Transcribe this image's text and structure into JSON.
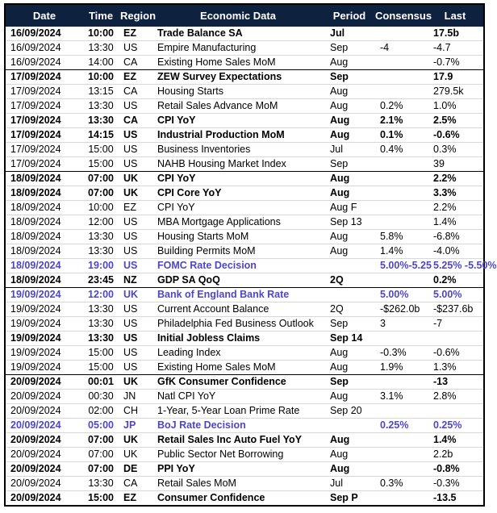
{
  "colors": {
    "header_bg": "#0e2240",
    "header_text": "#ffffff",
    "text": "#000000",
    "highlight": "#4e46c8",
    "row_line": "#d8d8d8",
    "frame": "#000000"
  },
  "chart_data": {
    "type": "table",
    "columns": [
      "Date",
      "Time",
      "Region",
      "Economic Data",
      "Period",
      "Consensus",
      "Last"
    ],
    "rows": [
      {
        "date": "16/09/2024",
        "time": "10:00",
        "region": "EZ",
        "event": "Trade Balance SA",
        "period": "Jul",
        "consensus": "",
        "last": "17.5b",
        "style": "bold",
        "day_start": false
      },
      {
        "date": "16/09/2024",
        "time": "13:30",
        "region": "US",
        "event": "Empire Manufacturing",
        "period": "Sep",
        "consensus": "-4",
        "last": "-4.7",
        "style": "normal",
        "day_start": false
      },
      {
        "date": "16/09/2024",
        "time": "14:00",
        "region": "CA",
        "event": "Existing Home Sales MoM",
        "period": "Aug",
        "consensus": "",
        "last": "-0.7%",
        "style": "normal",
        "day_start": false
      },
      {
        "date": "17/09/2024",
        "time": "10:00",
        "region": "EZ",
        "event": "ZEW Survey Expectations",
        "period": "Sep",
        "consensus": "",
        "last": "17.9",
        "style": "bold",
        "day_start": true
      },
      {
        "date": "17/09/2024",
        "time": "13:15",
        "region": "CA",
        "event": "Housing Starts",
        "period": "Aug",
        "consensus": "",
        "last": "279.5k",
        "style": "normal",
        "day_start": false
      },
      {
        "date": "17/09/2024",
        "time": "13:30",
        "region": "US",
        "event": "Retail Sales Advance MoM",
        "period": "Aug",
        "consensus": "0.2%",
        "last": "1.0%",
        "style": "normal",
        "day_start": false
      },
      {
        "date": "17/09/2024",
        "time": "13:30",
        "region": "CA",
        "event": "CPI YoY",
        "period": "Aug",
        "consensus": "2.1%",
        "last": "2.5%",
        "style": "bold",
        "day_start": false
      },
      {
        "date": "17/09/2024",
        "time": "14:15",
        "region": "US",
        "event": "Industrial Production MoM",
        "period": "Aug",
        "consensus": "0.1%",
        "last": "-0.6%",
        "style": "bold",
        "day_start": false
      },
      {
        "date": "17/09/2024",
        "time": "15:00",
        "region": "US",
        "event": "Business Inventories",
        "period": "Jul",
        "consensus": "0.4%",
        "last": "0.3%",
        "style": "normal",
        "day_start": false
      },
      {
        "date": "17/09/2024",
        "time": "15:00",
        "region": "US",
        "event": "NAHB Housing Market Index",
        "period": "Sep",
        "consensus": "",
        "last": "39",
        "style": "normal",
        "day_start": false
      },
      {
        "date": "18/09/2024",
        "time": "07:00",
        "region": "UK",
        "event": "CPI YoY",
        "period": "Aug",
        "consensus": "",
        "last": "2.2%",
        "style": "bold",
        "day_start": true
      },
      {
        "date": "18/09/2024",
        "time": "07:00",
        "region": "UK",
        "event": "CPI Core YoY",
        "period": "Aug",
        "consensus": "",
        "last": "3.3%",
        "style": "bold",
        "day_start": false
      },
      {
        "date": "18/09/2024",
        "time": "10:00",
        "region": "EZ",
        "event": "CPI YoY",
        "period": "Aug F",
        "consensus": "",
        "last": "2.2%",
        "style": "normal",
        "day_start": false
      },
      {
        "date": "18/09/2024",
        "time": "12:00",
        "region": "US",
        "event": "MBA Mortgage Applications",
        "period": "Sep 13",
        "consensus": "",
        "last": "1.4%",
        "style": "normal",
        "day_start": false
      },
      {
        "date": "18/09/2024",
        "time": "13:30",
        "region": "US",
        "event": "Housing Starts MoM",
        "period": "Aug",
        "consensus": "5.8%",
        "last": "-6.8%",
        "style": "normal",
        "day_start": false
      },
      {
        "date": "18/09/2024",
        "time": "13:30",
        "region": "US",
        "event": "Building Permits MoM",
        "period": "Aug",
        "consensus": "1.4%",
        "last": "-4.0%",
        "style": "normal",
        "day_start": false
      },
      {
        "date": "18/09/2024",
        "time": "19:00",
        "region": "US",
        "event": "FOMC Rate Decision",
        "period": "",
        "consensus": "5.00%-5.25",
        "last": "5.25% -5.50%",
        "style": "highlight",
        "day_start": false
      },
      {
        "date": "18/09/2024",
        "time": "23:45",
        "region": "NZ",
        "event": "GDP SA QoQ",
        "period": "2Q",
        "consensus": "",
        "last": "0.2%",
        "style": "bold",
        "day_start": false
      },
      {
        "date": "19/09/2024",
        "time": "12:00",
        "region": "UK",
        "event": "Bank of England Bank Rate",
        "period": "",
        "consensus": "5.00%",
        "last": "5.00%",
        "style": "highlight",
        "day_start": true
      },
      {
        "date": "19/09/2024",
        "time": "13:30",
        "region": "US",
        "event": "Current Account Balance",
        "period": "2Q",
        "consensus": "-$262.0b",
        "last": "-$237.6b",
        "style": "normal",
        "day_start": false
      },
      {
        "date": "19/09/2024",
        "time": "13:30",
        "region": "US",
        "event": "Philadelphia Fed Business Outlook",
        "period": "Sep",
        "consensus": "3",
        "last": "-7",
        "style": "normal",
        "day_start": false
      },
      {
        "date": "19/09/2024",
        "time": "13:30",
        "region": "US",
        "event": "Initial Jobless Claims",
        "period": "Sep 14",
        "consensus": "",
        "last": "",
        "style": "bold",
        "day_start": false
      },
      {
        "date": "19/09/2024",
        "time": "15:00",
        "region": "US",
        "event": "Leading Index",
        "period": "Aug",
        "consensus": "-0.3%",
        "last": "-0.6%",
        "style": "normal",
        "day_start": false
      },
      {
        "date": "19/09/2024",
        "time": "15:00",
        "region": "US",
        "event": "Existing Home Sales MoM",
        "period": "Aug",
        "consensus": "1.9%",
        "last": "1.3%",
        "style": "normal",
        "day_start": false
      },
      {
        "date": "20/09/2024",
        "time": "00:01",
        "region": "UK",
        "event": "GfK Consumer Confidence",
        "period": "Sep",
        "consensus": "",
        "last": "-13",
        "style": "bold",
        "day_start": true
      },
      {
        "date": "20/09/2024",
        "time": "00:30",
        "region": "JN",
        "event": "Natl CPI YoY",
        "period": "Aug",
        "consensus": "3.1%",
        "last": "2.8%",
        "style": "normal",
        "day_start": false
      },
      {
        "date": "20/09/2024",
        "time": "02:00",
        "region": "CH",
        "event": "1-Year, 5-Year Loan Prime Rate",
        "period": "Sep 20",
        "consensus": "",
        "last": "",
        "style": "normal",
        "day_start": false
      },
      {
        "date": "20/09/2024",
        "time": "05:00",
        "region": "JP",
        "event": "BoJ Rate Decision",
        "period": "",
        "consensus": "0.25%",
        "last": "0.25%",
        "style": "highlight",
        "day_start": false
      },
      {
        "date": "20/09/2024",
        "time": "07:00",
        "region": "UK",
        "event": "Retail Sales Inc Auto Fuel YoY",
        "period": "Aug",
        "consensus": "",
        "last": "1.4%",
        "style": "bold",
        "day_start": false
      },
      {
        "date": "20/09/2024",
        "time": "07:00",
        "region": "UK",
        "event": "Public Sector Net Borrowing",
        "period": "Aug",
        "consensus": "",
        "last": "2.2b",
        "style": "normal",
        "day_start": false
      },
      {
        "date": "20/09/2024",
        "time": "07:00",
        "region": "DE",
        "event": "PPI YoY",
        "period": "Aug",
        "consensus": "",
        "last": "-0.8%",
        "style": "bold",
        "day_start": false
      },
      {
        "date": "20/09/2024",
        "time": "13:30",
        "region": "CA",
        "event": "Retail Sales MoM",
        "period": "Jul",
        "consensus": "0.3%",
        "last": "-0.3%",
        "style": "normal",
        "day_start": false
      },
      {
        "date": "20/09/2024",
        "time": "15:00",
        "region": "EZ",
        "event": "Consumer Confidence",
        "period": "Sep P",
        "consensus": "",
        "last": "-13.5",
        "style": "bold",
        "day_start": false
      }
    ]
  }
}
